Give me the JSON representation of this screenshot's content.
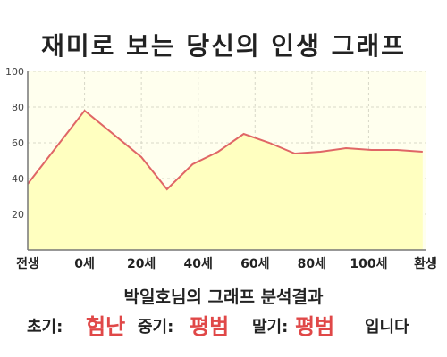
{
  "title": "재미로 보는 당신의 인생 그래프",
  "analysis_title": "박일호님의 그래프 분석결과",
  "result": {
    "early_label": "초기:",
    "early_value": "험난",
    "mid_label": "중기:",
    "mid_value": "평범",
    "late_label": "말기:",
    "late_value": "평범",
    "ending": "입니다"
  },
  "colors": {
    "line": "#e06666",
    "fill": "#ffffc0",
    "plot_bg": "#ffffee",
    "accent_text": "#e04848"
  },
  "chart_data": {
    "type": "area",
    "title": "",
    "xlabel": "",
    "ylabel": "",
    "x_tick_labels": [
      "전생",
      "0세",
      "20세",
      "40세",
      "60세",
      "80세",
      "100세",
      "환생"
    ],
    "y_ticks": [
      20,
      40,
      60,
      80,
      100
    ],
    "ylim": [
      0,
      100
    ],
    "grid": true,
    "series": [
      {
        "points": [
          {
            "x": -20,
            "y": 37
          },
          {
            "x": 0,
            "y": 78
          },
          {
            "x": 20,
            "y": 52
          },
          {
            "x": 29,
            "y": 34
          },
          {
            "x": 38,
            "y": 48
          },
          {
            "x": 47,
            "y": 55
          },
          {
            "x": 56,
            "y": 65
          },
          {
            "x": 65,
            "y": 60
          },
          {
            "x": 74,
            "y": 54
          },
          {
            "x": 83,
            "y": 55
          },
          {
            "x": 92,
            "y": 57
          },
          {
            "x": 101,
            "y": 56
          },
          {
            "x": 110,
            "y": 56
          },
          {
            "x": 119,
            "y": 55
          }
        ]
      }
    ]
  }
}
